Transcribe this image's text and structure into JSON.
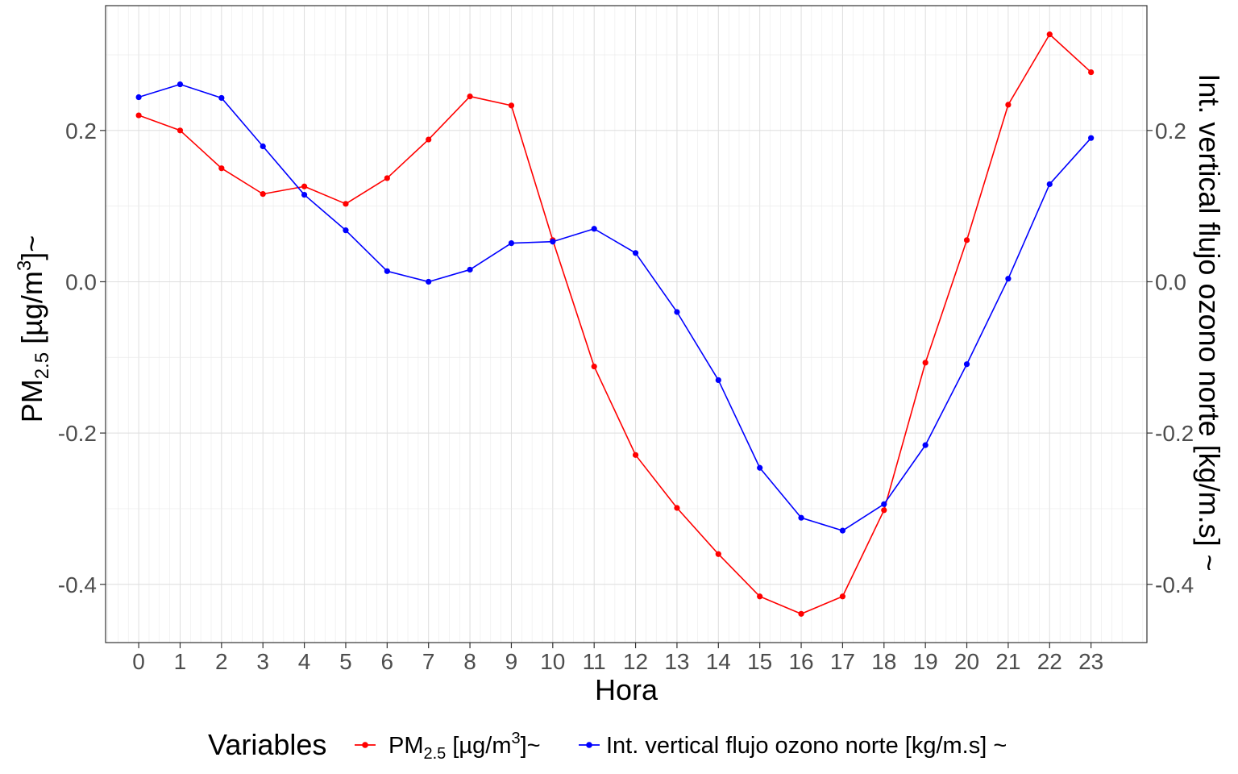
{
  "chart_data": {
    "type": "line",
    "xlabel": "Hora",
    "ylabel_left": {
      "main": "PM",
      "sub": "2.5",
      "mid": " [µg/m",
      "sup": "3",
      "end": "]~"
    },
    "ylabel_right": "Int. vertical flujo ozono norte [kg/m.s] ~",
    "x": [
      0,
      1,
      2,
      3,
      4,
      5,
      6,
      7,
      8,
      9,
      10,
      11,
      12,
      13,
      14,
      15,
      16,
      17,
      18,
      19,
      20,
      21,
      22,
      23
    ],
    "x_ticks": [
      "0",
      "1",
      "2",
      "3",
      "4",
      "5",
      "6",
      "7",
      "8",
      "9",
      "10",
      "11",
      "12",
      "13",
      "14",
      "15",
      "16",
      "17",
      "18",
      "19",
      "20",
      "21",
      "22",
      "23"
    ],
    "ylim": [
      -0.477,
      0.365
    ],
    "y_ticks": [
      0.2,
      0.0,
      -0.2,
      -0.4
    ],
    "y_tick_labels": [
      "0.2",
      "0.0",
      "-0.2",
      "-0.4"
    ],
    "grid": true,
    "legend_position": "bottom",
    "legend_title": "Variables",
    "series": [
      {
        "name": "PM2.5 [µg/m3]~",
        "legend_label": {
          "main": "PM",
          "sub": "2.5",
          "mid": " [µg/m",
          "sup": "3",
          "end": "]~"
        },
        "color": "#ff0000",
        "values": [
          0.22,
          0.2,
          0.15,
          0.116,
          0.126,
          0.103,
          0.137,
          0.188,
          0.245,
          0.233,
          0.055,
          -0.112,
          -0.229,
          -0.299,
          -0.36,
          -0.416,
          -0.439,
          -0.416,
          -0.302,
          -0.107,
          0.055,
          0.234,
          0.327,
          0.277
        ]
      },
      {
        "name": "Int. vertical flujo ozono norte [kg/m.s] ~",
        "legend_label": {
          "main": "Int. vertical flujo ozono norte [kg/m.s] ~"
        },
        "color": "#0000ff",
        "values": [
          0.244,
          0.261,
          0.243,
          0.179,
          0.115,
          0.068,
          0.014,
          0.0,
          0.016,
          0.051,
          0.053,
          0.07,
          0.038,
          -0.04,
          -0.13,
          -0.246,
          -0.312,
          -0.329,
          -0.294,
          -0.216,
          -0.109,
          0.004,
          0.129,
          0.19
        ]
      }
    ]
  }
}
